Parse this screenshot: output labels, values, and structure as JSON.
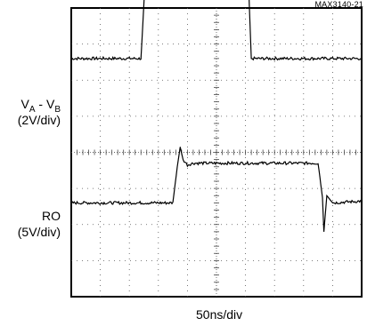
{
  "figure_id": "MAX3140-21",
  "chart_data": {
    "type": "line",
    "title": "",
    "xlabel": "50ns/div",
    "x_divisions": 10,
    "y_divisions": 8,
    "grid": true,
    "traces": [
      {
        "label_main": "V",
        "label_sub_a": "A",
        "label_mid": " - V",
        "label_sub_b": "B",
        "scale": "(2V/div)",
        "color": "#000000",
        "baseline_div": 6.6,
        "points": [
          [
            0,
            0
          ],
          [
            2.4,
            0
          ],
          [
            2.55,
            2.25
          ],
          [
            2.7,
            2.2
          ],
          [
            6.1,
            2.2
          ],
          [
            6.2,
            0
          ],
          [
            10,
            0
          ]
        ]
      },
      {
        "label_main": "RO",
        "scale": "(5V/div)",
        "color": "#000000",
        "baseline_div": 2.6,
        "points": [
          [
            0,
            0
          ],
          [
            3.5,
            0
          ],
          [
            3.65,
            1.0
          ],
          [
            3.75,
            1.55
          ],
          [
            3.85,
            1.2
          ],
          [
            4.0,
            1.05
          ],
          [
            4.2,
            1.1
          ],
          [
            8.5,
            1.1
          ],
          [
            8.65,
            0.15
          ],
          [
            8.7,
            -0.8
          ],
          [
            8.8,
            0.2
          ],
          [
            9.0,
            0.0
          ],
          [
            10,
            0.05
          ]
        ]
      }
    ]
  }
}
